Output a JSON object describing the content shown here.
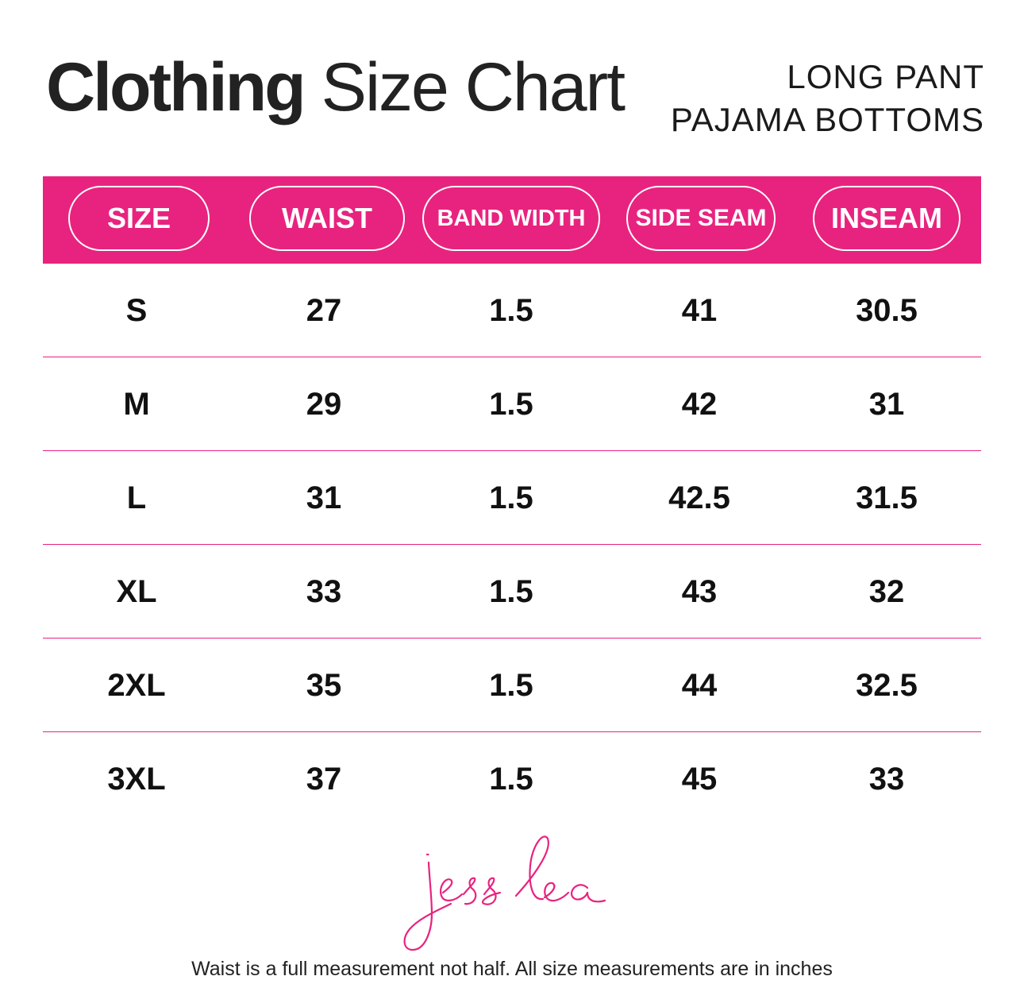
{
  "title": {
    "bold": "Clothing",
    "light": "Size Chart"
  },
  "subtitle": {
    "line1": "LONG PANT",
    "line2": "PAJAMA BOTTOMS"
  },
  "colors": {
    "accent": "#e8237f"
  },
  "table": {
    "headers": [
      "SIZE",
      "WAIST",
      "BAND WIDTH",
      "SIDE SEAM",
      "INSEAM"
    ],
    "rows": [
      [
        "S",
        "27",
        "1.5",
        "41",
        "30.5"
      ],
      [
        "M",
        "29",
        "1.5",
        "42",
        "31"
      ],
      [
        "L",
        "31",
        "1.5",
        "42.5",
        "31.5"
      ],
      [
        "XL",
        "33",
        "1.5",
        "43",
        "32"
      ],
      [
        "2XL",
        "35",
        "1.5",
        "44",
        "32.5"
      ],
      [
        "3XL",
        "37",
        "1.5",
        "45",
        "33"
      ]
    ]
  },
  "signature": "jess lea",
  "footnote": "Waist is a full measurement not half. All size measurements are in inches"
}
